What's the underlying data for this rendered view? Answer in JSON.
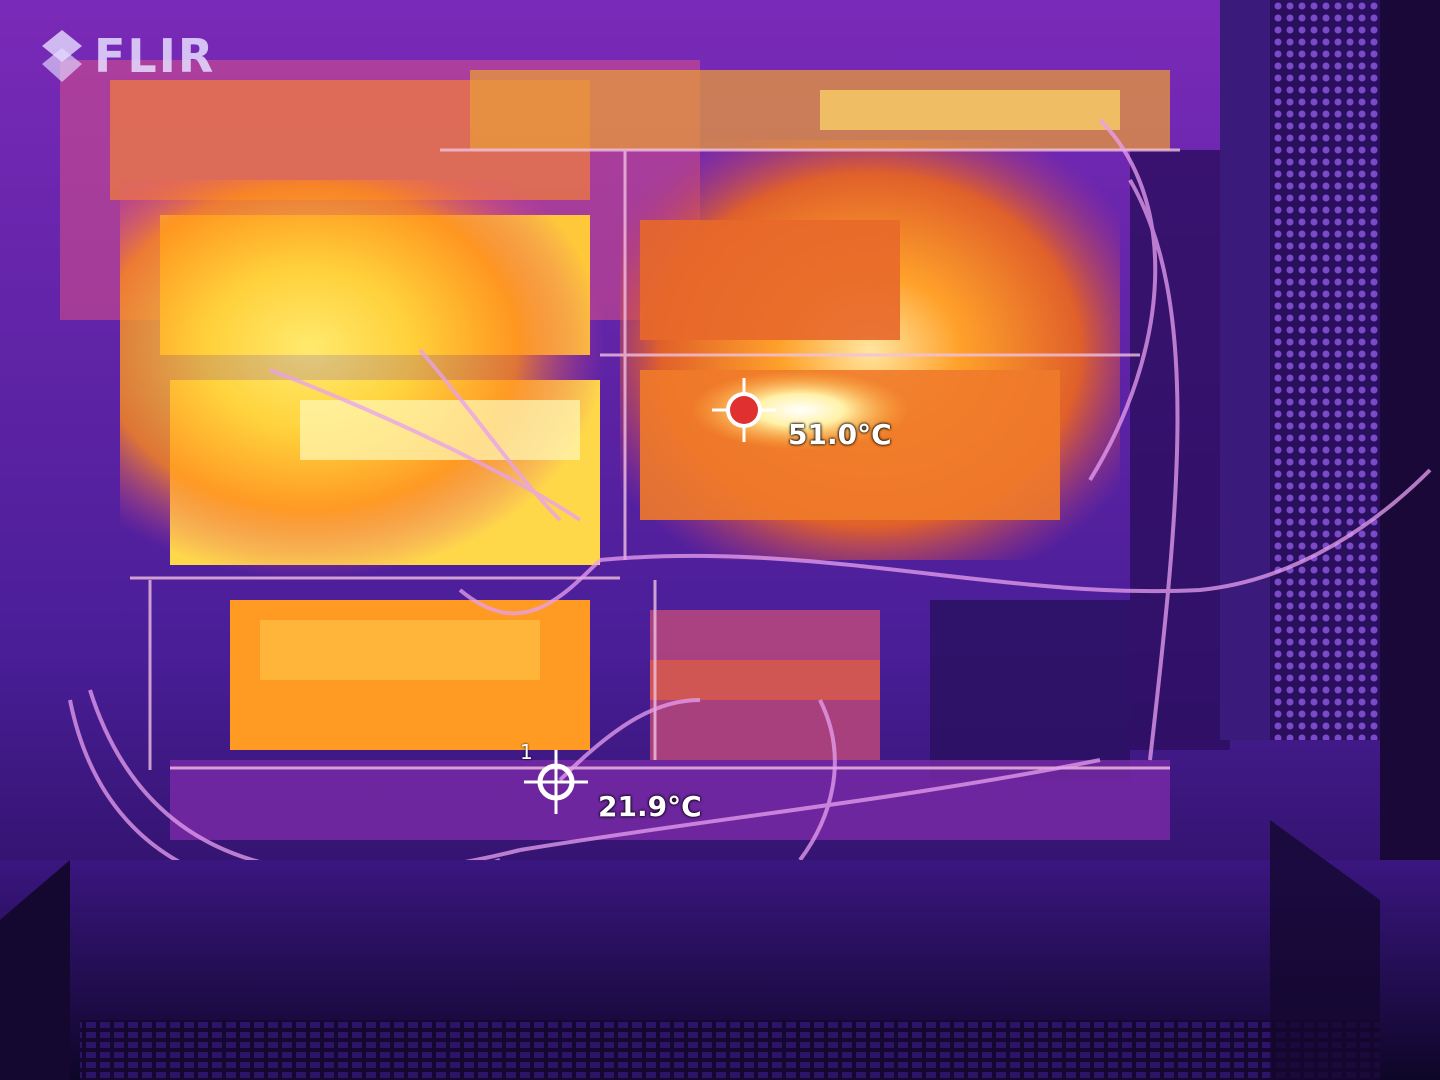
{
  "brand": {
    "logo_text": "FLIR"
  },
  "measurements": [
    {
      "index": "",
      "temperature": "51.0°C",
      "marker_color": "#e03030"
    },
    {
      "index": "1",
      "temperature": "21.9°C",
      "marker_color": "#ffffff"
    }
  ],
  "colors": {
    "hot": "#ffffff",
    "warm_yellow": "#ffd23a",
    "orange": "#ff8a1a",
    "magenta": "#c8389a",
    "purple": "#6a2aa8",
    "cold": "#1a0a3a"
  }
}
